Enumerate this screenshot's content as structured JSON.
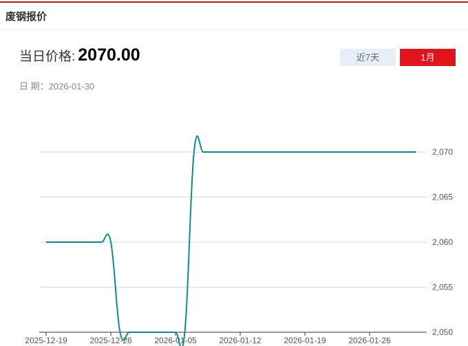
{
  "header": {
    "title": "废钢报价"
  },
  "price": {
    "label": "当日价格:",
    "value": "2070.00"
  },
  "date": {
    "label": "日 期：",
    "value": "2026-01-30"
  },
  "range_buttons": [
    {
      "label": "近7天",
      "active": false
    },
    {
      "label": "1月",
      "active": true
    }
  ],
  "colors": {
    "line": "#0e8a8f",
    "accent": "#e0141a"
  },
  "chart_data": {
    "type": "line",
    "x_tick_labels": [
      "2025-12-19",
      "2025-12-26",
      "2026-01-05",
      "2026-01-12",
      "2026-01-19",
      "2026-01-26"
    ],
    "x_tick_indices": [
      0,
      7,
      14,
      21,
      28,
      35
    ],
    "values": [
      2060,
      2060,
      2060,
      2060,
      2060,
      2060,
      2060,
      2060,
      2050,
      2050,
      2050,
      2050,
      2050,
      2050,
      2050,
      2050,
      2070,
      2070,
      2070,
      2070,
      2070,
      2070,
      2070,
      2070,
      2070,
      2070,
      2070,
      2070,
      2070,
      2070,
      2070,
      2070,
      2070,
      2070,
      2070,
      2070,
      2070,
      2070,
      2070,
      2070,
      2070
    ],
    "y_ticks": [
      "2,050",
      "2,055",
      "2,060",
      "2,065",
      "2,070"
    ],
    "ylim": [
      2050,
      2070
    ],
    "y_axis_position": "right",
    "grid": true,
    "smooth": true
  }
}
